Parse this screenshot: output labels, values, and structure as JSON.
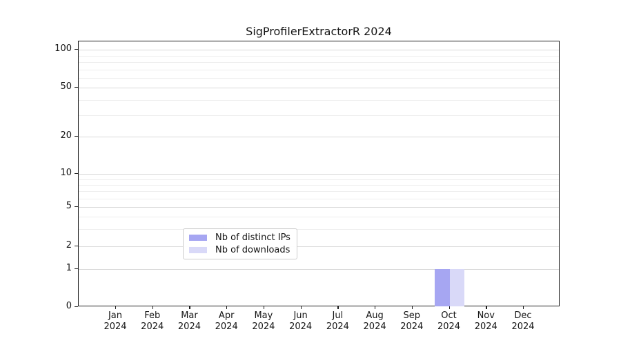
{
  "chart_data": {
    "type": "bar",
    "title": "SigProfilerExtractorR 2024",
    "x_tick_labels": [
      {
        "month": "Jan",
        "year": "2024"
      },
      {
        "month": "Feb",
        "year": "2024"
      },
      {
        "month": "Mar",
        "year": "2024"
      },
      {
        "month": "Apr",
        "year": "2024"
      },
      {
        "month": "May",
        "year": "2024"
      },
      {
        "month": "Jun",
        "year": "2024"
      },
      {
        "month": "Jul",
        "year": "2024"
      },
      {
        "month": "Aug",
        "year": "2024"
      },
      {
        "month": "Sep",
        "year": "2024"
      },
      {
        "month": "Oct",
        "year": "2024"
      },
      {
        "month": "Nov",
        "year": "2024"
      },
      {
        "month": "Dec",
        "year": "2024"
      }
    ],
    "series": [
      {
        "name": "Nb of distinct IPs",
        "color": "#a6a6f2",
        "values": [
          0,
          0,
          0,
          0,
          0,
          0,
          0,
          0,
          0,
          1,
          0,
          0
        ]
      },
      {
        "name": "Nb of downloads",
        "color": "#d9d9f8",
        "values": [
          0,
          0,
          0,
          0,
          0,
          0,
          0,
          0,
          0,
          1,
          0,
          0
        ]
      }
    ],
    "y_axis": {
      "scale": "log-like",
      "ticks": [
        0,
        1,
        2,
        5,
        10,
        20,
        50,
        100
      ],
      "minor_gridlines": [
        3,
        4,
        6,
        7,
        8,
        9,
        30,
        40,
        60,
        70,
        80,
        90
      ],
      "range": [
        0,
        115
      ]
    },
    "grid": {
      "horizontal": true,
      "vertical": false
    },
    "legend": {
      "position": "inside-bottom-center"
    }
  },
  "colors": {
    "major_grid": "#d9d9d9",
    "minor_grid": "#eeeeee",
    "spine": "#1c1c1c",
    "text": "#151515"
  }
}
